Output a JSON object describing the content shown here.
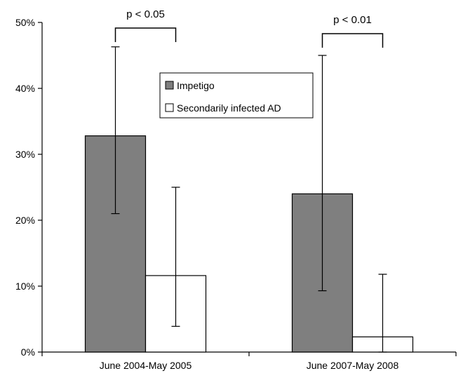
{
  "chart_data": {
    "type": "bar",
    "categories": [
      "June 2004-May 2005",
      "June 2007-May 2008"
    ],
    "series": [
      {
        "name": "Impetigo",
        "color": "#7f7f7f",
        "values": [
          32.8,
          24.0
        ],
        "error_low": [
          21.0,
          9.3
        ],
        "error_high": [
          46.3,
          45.0
        ]
      },
      {
        "name": "Secondarily infected AD",
        "color": "#ffffff",
        "values": [
          11.6,
          2.3
        ],
        "error_low": [
          3.9,
          0.0
        ],
        "error_high": [
          25.0,
          11.8
        ]
      }
    ],
    "ylim": [
      0,
      50
    ],
    "yticks": [
      0,
      10,
      20,
      30,
      40,
      50
    ],
    "ytick_labels": [
      "0%",
      "10%",
      "20%",
      "30%",
      "40%",
      "50%"
    ],
    "significance": [
      {
        "category_index": 0,
        "label": "p < 0.05"
      },
      {
        "category_index": 1,
        "label": "p < 0.01"
      }
    ],
    "legend": {
      "position": "top-center"
    },
    "grid": false
  }
}
